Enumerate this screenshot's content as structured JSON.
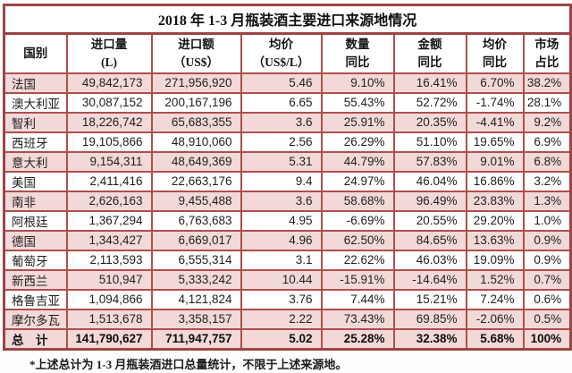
{
  "title": "2018 年 1-3 月瓶装酒主要进口来源地情况",
  "footnote": "*上述总计为 1-3 月瓶装酒进口总量统计，不限于上述来源地。",
  "header": {
    "columns": [
      {
        "key": "country",
        "lines": [
          "国别"
        ]
      },
      {
        "key": "import-volume",
        "lines": [
          "进口量",
          "(L)"
        ]
      },
      {
        "key": "import-value",
        "lines": [
          "进口额",
          "（US$）"
        ]
      },
      {
        "key": "avg-price",
        "lines": [
          "均价",
          "（US$/L）"
        ]
      },
      {
        "key": "volume-yoy",
        "lines": [
          "数量",
          "同比"
        ]
      },
      {
        "key": "value-yoy",
        "lines": [
          "金额",
          "同比"
        ]
      },
      {
        "key": "price-yoy",
        "lines": [
          "均价",
          "同比"
        ]
      },
      {
        "key": "market-share",
        "lines": [
          "市场",
          "占比"
        ]
      }
    ]
  },
  "chart_data": {
    "type": "table",
    "title": "2018 年 1-3 月瓶装酒主要进口来源地情况",
    "columns": [
      "国别",
      "进口量 (L)",
      "进口额（US$）",
      "均价（US$/L）",
      "数量同比",
      "金额同比",
      "均价同比",
      "市场占比"
    ],
    "rows": [
      [
        "法国",
        "49,842,173",
        "271,956,920",
        "5.46",
        "9.10%",
        "16.41%",
        "6.70%",
        "38.2%"
      ],
      [
        "澳大利亚",
        "30,087,152",
        "200,167,196",
        "6.65",
        "55.43%",
        "52.72%",
        "-1.74%",
        "28.1%"
      ],
      [
        "智利",
        "18,226,742",
        "65,683,355",
        "3.6",
        "25.91%",
        "20.35%",
        "-4.41%",
        "9.2%"
      ],
      [
        "西班牙",
        "19,105,866",
        "48,910,060",
        "2.56",
        "26.29%",
        "51.10%",
        "19.65%",
        "6.9%"
      ],
      [
        "意大利",
        "9,154,311",
        "48,649,369",
        "5.31",
        "44.79%",
        "57.83%",
        "9.01%",
        "6.8%"
      ],
      [
        "美国",
        "2,411,416",
        "22,663,176",
        "9.4",
        "24.97%",
        "46.04%",
        "16.86%",
        "3.2%"
      ],
      [
        "南非",
        "2,626,163",
        "9,455,488",
        "3.6",
        "58.68%",
        "96.49%",
        "23.83%",
        "1.3%"
      ],
      [
        "阿根廷",
        "1,367,294",
        "6,763,683",
        "4.95",
        "-6.69%",
        "20.55%",
        "29.20%",
        "1.0%"
      ],
      [
        "德国",
        "1,343,427",
        "6,669,017",
        "4.96",
        "62.50%",
        "84.65%",
        "13.63%",
        "0.9%"
      ],
      [
        "葡萄牙",
        "2,113,593",
        "6,555,314",
        "3.1",
        "22.62%",
        "46.03%",
        "19.09%",
        "0.9%"
      ],
      [
        "新西兰",
        "510,947",
        "5,333,242",
        "10.44",
        "-15.91%",
        "-14.64%",
        "1.52%",
        "0.7%"
      ],
      [
        "格鲁吉亚",
        "1,094,866",
        "4,121,824",
        "3.76",
        "7.44%",
        "15.21%",
        "7.24%",
        "0.6%"
      ],
      [
        "摩尔多瓦",
        "1,513,678",
        "3,358,157",
        "2.22",
        "73.43%",
        "69.85%",
        "-2.06%",
        "0.5%"
      ]
    ],
    "total_row": [
      "总　计",
      "141,790,627",
      "711,947,757",
      "5.02",
      "25.28%",
      "32.38%",
      "5.68%",
      "100%"
    ]
  },
  "colors": {
    "row_highlight": "#f2d9d8",
    "row_plain": "#ffffff",
    "border_inner": "#ae4f4c",
    "border_outer": "#9c4543",
    "text": "#1e1e1e"
  }
}
